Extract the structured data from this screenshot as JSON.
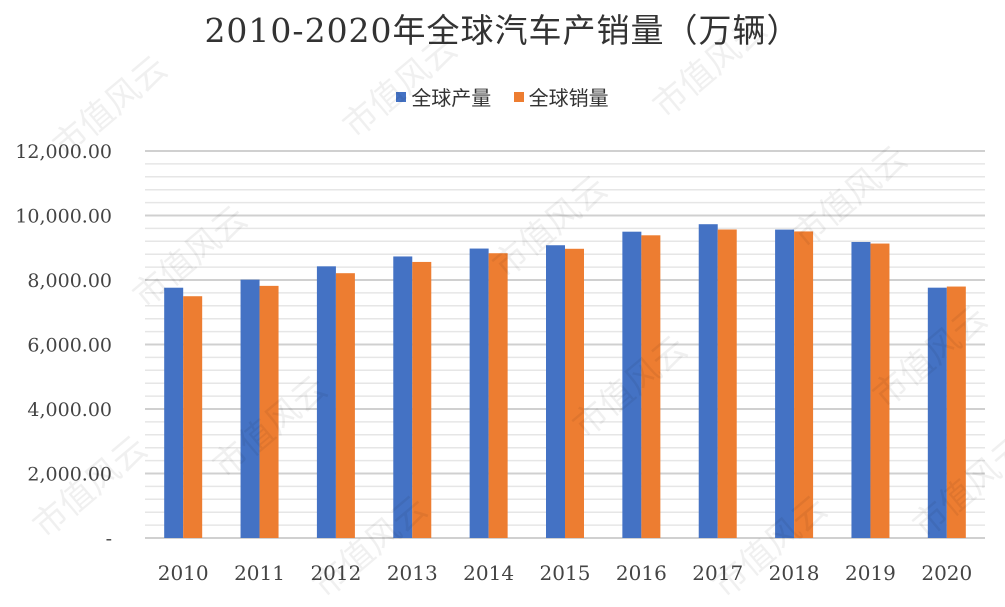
{
  "chart_data": {
    "type": "bar",
    "title": "2010-2020年全球汽车产销量（万辆）",
    "categories": [
      "2010",
      "2011",
      "2012",
      "2013",
      "2014",
      "2015",
      "2016",
      "2017",
      "2018",
      "2019",
      "2020"
    ],
    "series": [
      {
        "name": "全球产量",
        "color": "#4472C4",
        "values": [
          7761,
          8010,
          8424,
          8730,
          8975,
          9078,
          9498,
          9730,
          9563,
          9179,
          7762
        ]
      },
      {
        "name": "全球销量",
        "color": "#ED7D31",
        "values": [
          7497,
          7818,
          8211,
          8560,
          8830,
          8968,
          9386,
          9566,
          9506,
          9130,
          7797
        ]
      }
    ],
    "ylim": [
      0,
      12000
    ],
    "yticks": [
      0,
      2000,
      4000,
      6000,
      8000,
      10000,
      12000
    ],
    "ytick_labels": [
      "-",
      "2,000.00",
      "4,000.00",
      "6,000.00",
      "8,000.00",
      "10,000.00",
      "12,000.00"
    ],
    "minor_grid_step": 400,
    "grid": true,
    "legend_position": "top",
    "xlabel": "",
    "ylabel": ""
  },
  "watermark": "市值风云"
}
